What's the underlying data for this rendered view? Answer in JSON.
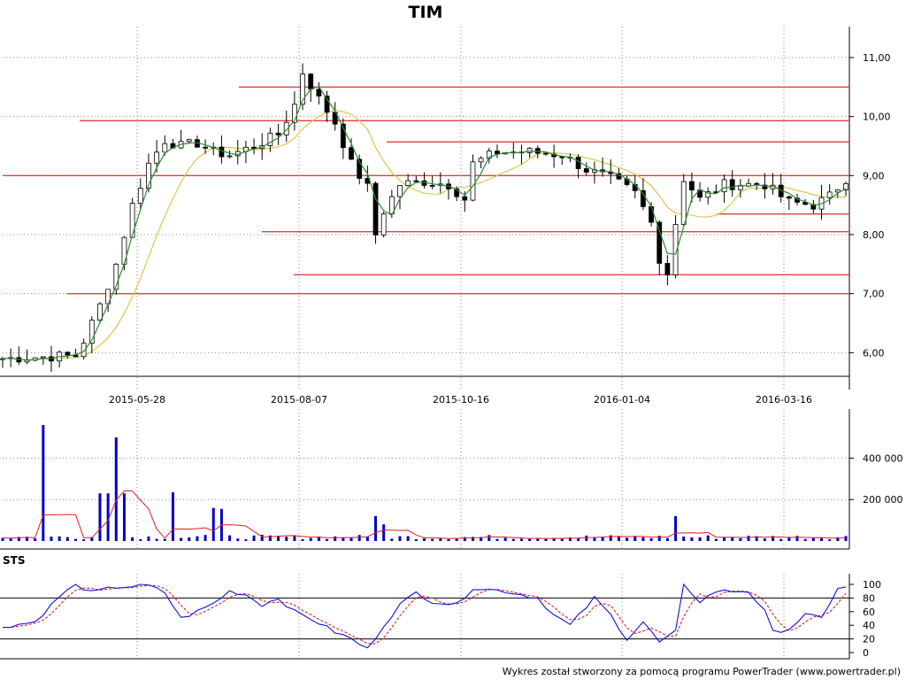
{
  "chart_data": [
    {
      "type": "candlestick",
      "title": "TIM",
      "x_labels": [
        "2015-05-28",
        "2015-08-07",
        "2015-10-16",
        "2016-01-04",
        "2016-03-16"
      ],
      "y_ticks": [
        "6,00",
        "7,00",
        "8,00",
        "9,00",
        "10,00",
        "11,00"
      ],
      "ylim": [
        5.6,
        11.3
      ],
      "support_resistance_levels": [
        10.5,
        9.93,
        9.57,
        9.0,
        8.35,
        8.05,
        7.32,
        7.0
      ],
      "close_profile": [
        [
          0,
          5.9
        ],
        [
          5,
          5.93
        ],
        [
          9,
          5.95
        ],
        [
          10,
          6.2
        ],
        [
          12,
          6.8
        ],
        [
          14,
          7.5
        ],
        [
          16,
          8.5
        ],
        [
          18,
          9.2
        ],
        [
          20,
          9.6
        ],
        [
          22,
          9.5
        ],
        [
          24,
          9.55
        ],
        [
          26,
          9.4
        ],
        [
          28,
          9.35
        ],
        [
          31,
          9.5
        ],
        [
          34,
          9.7
        ],
        [
          36,
          10.2
        ],
        [
          37,
          10.75
        ],
        [
          39,
          10.3
        ],
        [
          41,
          9.9
        ],
        [
          43,
          9.2
        ],
        [
          45,
          8.8
        ],
        [
          46,
          8.0
        ],
        [
          47,
          8.4
        ],
        [
          49,
          8.85
        ],
        [
          52,
          8.9
        ],
        [
          55,
          8.85
        ],
        [
          57,
          8.6
        ],
        [
          58,
          9.2
        ],
        [
          61,
          9.4
        ],
        [
          65,
          9.4
        ],
        [
          69,
          9.35
        ],
        [
          72,
          9.1
        ],
        [
          75,
          8.95
        ],
        [
          78,
          8.7
        ],
        [
          80,
          8.2
        ],
        [
          81,
          7.6
        ],
        [
          82,
          7.35
        ],
        [
          83,
          8.2
        ],
        [
          84,
          8.95
        ],
        [
          86,
          8.6
        ],
        [
          89,
          8.85
        ],
        [
          94,
          8.85
        ],
        [
          97,
          8.55
        ],
        [
          100,
          8.5
        ],
        [
          102,
          8.65
        ],
        [
          104,
          8.95
        ]
      ],
      "series": [
        {
          "name": "price",
          "color": "#000000"
        },
        {
          "name": "moving-average-short",
          "color": "#2e8b2e"
        },
        {
          "name": "moving-average-long",
          "color": "#d9c94a"
        }
      ]
    },
    {
      "type": "bar",
      "y_ticks": [
        "200 000",
        "400 000"
      ],
      "ylim": [
        0,
        560000
      ],
      "spikes": [
        [
          5,
          560000
        ],
        [
          12,
          230000
        ],
        [
          13,
          230000
        ],
        [
          14,
          500000
        ],
        [
          15,
          230000
        ],
        [
          21,
          235000
        ],
        [
          26,
          160000
        ],
        [
          27,
          155000
        ],
        [
          46,
          120000
        ],
        [
          47,
          80000
        ],
        [
          83,
          120000
        ]
      ],
      "bar_color": "#0000c8",
      "average_color": "#e02020"
    },
    {
      "type": "line",
      "panel_label": "STS",
      "y_ticks": [
        "0",
        "20",
        "40",
        "60",
        "80",
        "100"
      ],
      "ylim": [
        0,
        100
      ],
      "reference_levels": [
        20,
        80
      ],
      "sts_profile": [
        [
          0,
          38
        ],
        [
          4,
          45
        ],
        [
          7,
          82
        ],
        [
          9,
          100
        ],
        [
          11,
          88
        ],
        [
          14,
          96
        ],
        [
          18,
          98
        ],
        [
          20,
          88
        ],
        [
          22,
          50
        ],
        [
          24,
          60
        ],
        [
          26,
          72
        ],
        [
          28,
          90
        ],
        [
          30,
          85
        ],
        [
          32,
          70
        ],
        [
          34,
          80
        ],
        [
          36,
          60
        ],
        [
          38,
          50
        ],
        [
          41,
          30
        ],
        [
          43,
          20
        ],
        [
          45,
          5
        ],
        [
          47,
          40
        ],
        [
          49,
          70
        ],
        [
          51,
          88
        ],
        [
          53,
          75
        ],
        [
          56,
          70
        ],
        [
          58,
          95
        ],
        [
          62,
          90
        ],
        [
          66,
          80
        ],
        [
          68,
          55
        ],
        [
          70,
          40
        ],
        [
          73,
          80
        ],
        [
          75,
          55
        ],
        [
          77,
          20
        ],
        [
          79,
          45
        ],
        [
          81,
          15
        ],
        [
          83,
          30
        ],
        [
          84,
          100
        ],
        [
          86,
          75
        ],
        [
          88,
          90
        ],
        [
          92,
          90
        ],
        [
          94,
          60
        ],
        [
          95,
          30
        ],
        [
          97,
          35
        ],
        [
          99,
          55
        ],
        [
          101,
          50
        ],
        [
          103,
          95
        ]
      ],
      "series": [
        {
          "name": "sts-fast",
          "color": "#1010e0"
        },
        {
          "name": "sts-slow",
          "color": "#e02020"
        }
      ]
    }
  ],
  "footer": "Wykres został stworzony za pomocą programu PowerTrader (www.powertrader.pl)"
}
